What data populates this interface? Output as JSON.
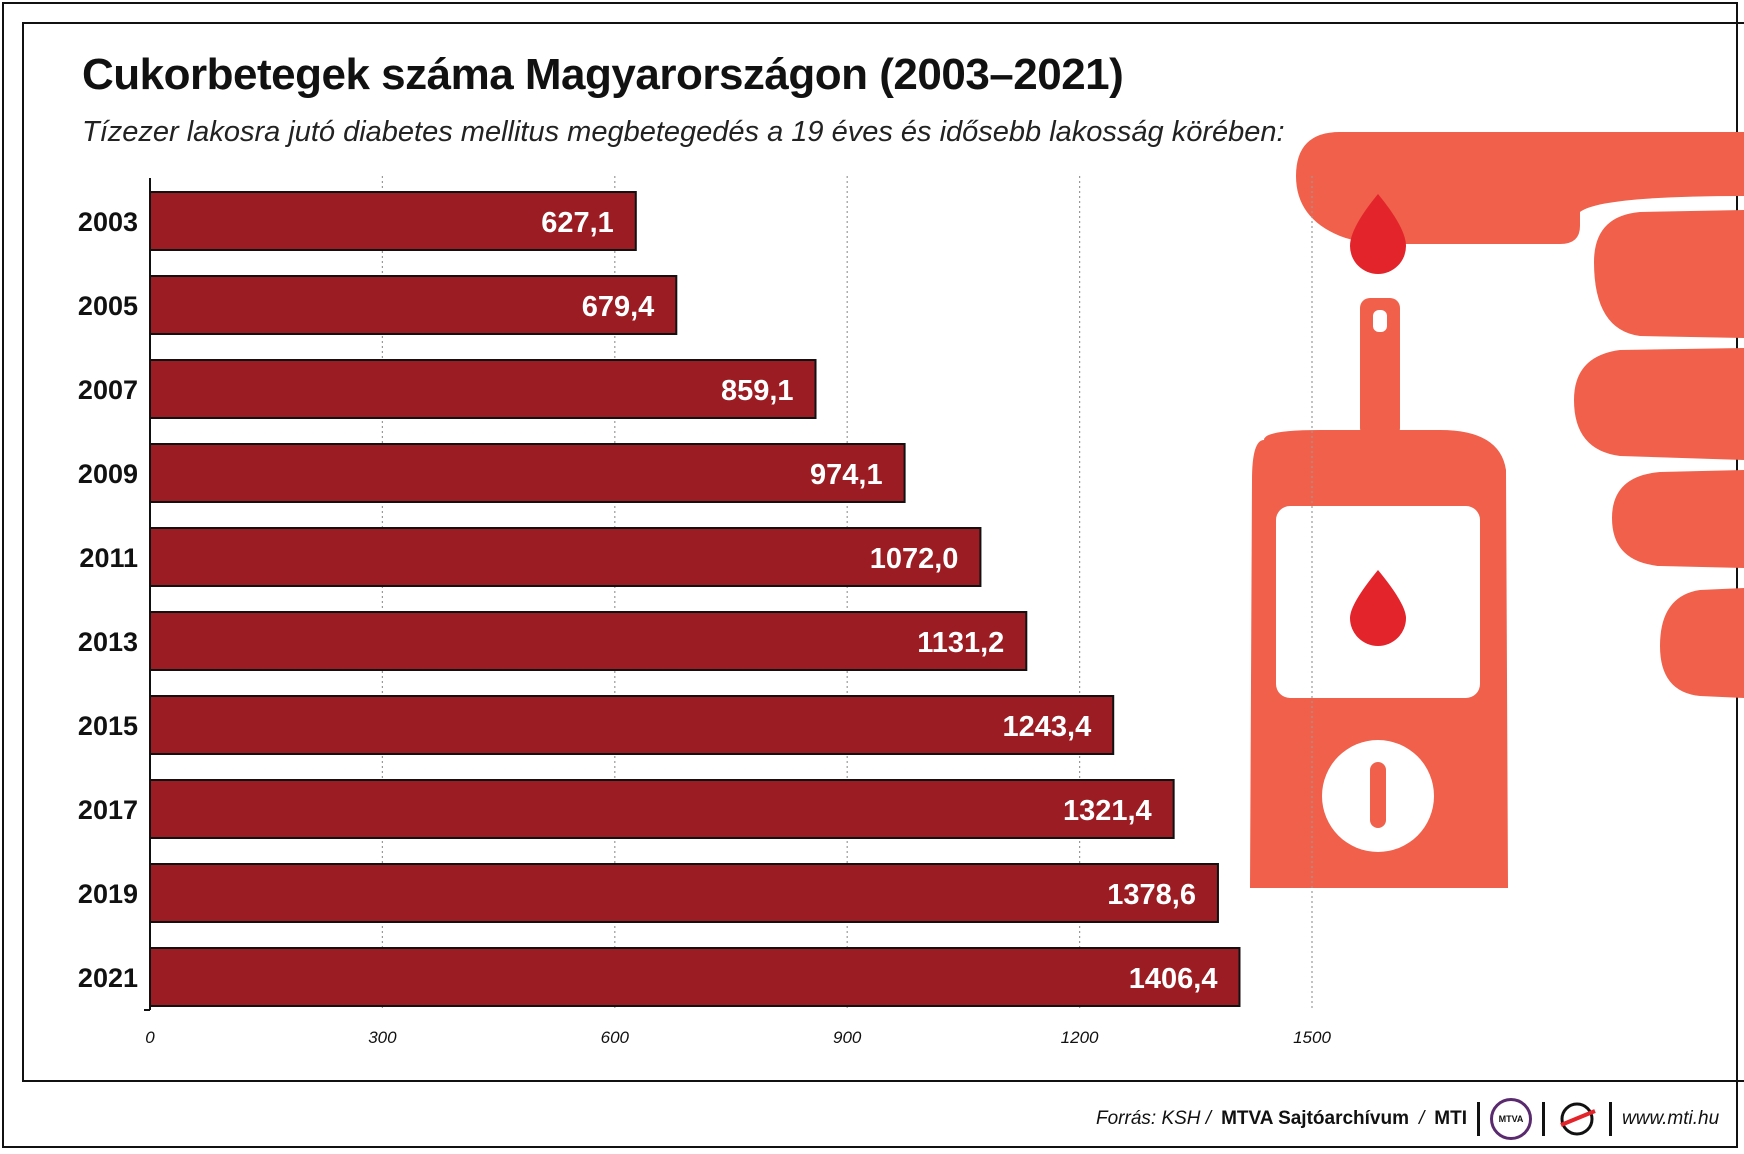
{
  "chart_data": {
    "type": "bar",
    "orientation": "horizontal",
    "title": "Cukorbetegek száma Magyarországon (2003–2021)",
    "subtitle": "Tízezer lakosra jutó diabetes mellitus megbetegedés a 19 éves és idősebb lakosság körében:",
    "categories": [
      "2003",
      "2005",
      "2007",
      "2009",
      "2011",
      "2013",
      "2015",
      "2017",
      "2019",
      "2021"
    ],
    "values": [
      627.1,
      679.4,
      859.1,
      974.1,
      1072.0,
      1131.2,
      1243.4,
      1321.4,
      1378.6,
      1406.4
    ],
    "value_labels": [
      "627,1",
      "679,4",
      "859,1",
      "974,1",
      "1072,0",
      "1131,2",
      "1243,4",
      "1321,4",
      "1378,6",
      "1406,4"
    ],
    "xlim": [
      0,
      1500
    ],
    "x_ticks": [
      0,
      300,
      600,
      900,
      1200,
      1500
    ],
    "x_tick_labels": [
      "0",
      "300",
      "600",
      "900",
      "1200",
      "1500"
    ],
    "grid": "vertical-dotted",
    "bar_color": "#9b1c22"
  },
  "footer": {
    "source_prefix": "Forrás: KSH /",
    "source_bold": "MTVA Sajtóarchívum",
    "source_sep": "/",
    "source_mti": "MTI",
    "logo_text": "MTVA",
    "website": "www.mti.hu"
  },
  "illustration": {
    "name": "glucose-meter-hand-illustration",
    "accent_color": "#f0604a",
    "drop_color": "#e3242b"
  }
}
